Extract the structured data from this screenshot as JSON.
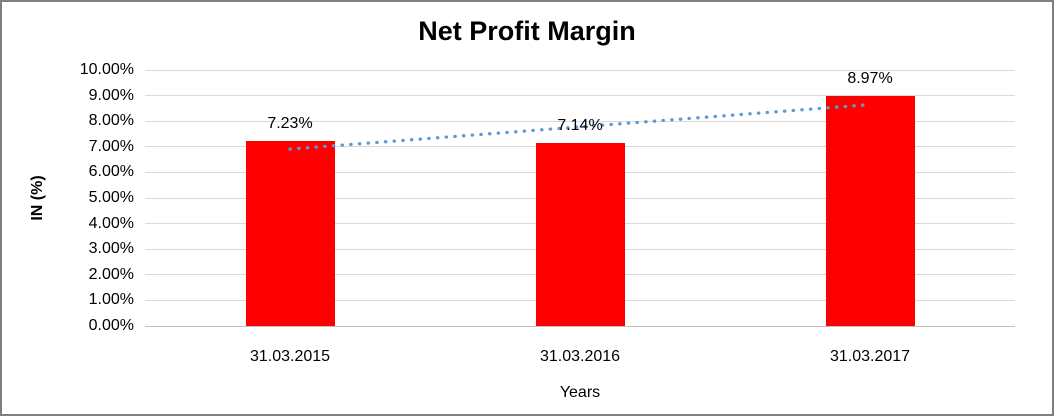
{
  "chart_data": {
    "type": "bar",
    "title": "Net Profit Margin",
    "xlabel": "Years",
    "ylabel": "IN (%)",
    "categories": [
      "31.03.2015",
      "31.03.2016",
      "31.03.2017"
    ],
    "values": [
      7.23,
      7.14,
      8.97
    ],
    "value_labels": [
      "7.23%",
      "7.14%",
      "8.97%"
    ],
    "ylim": [
      0,
      10
    ],
    "ytick_step": 1,
    "ytick_labels": [
      "0.00%",
      "1.00%",
      "2.00%",
      "3.00%",
      "4.00%",
      "5.00%",
      "6.00%",
      "7.00%",
      "8.00%",
      "9.00%",
      "10.00%"
    ],
    "grid": true,
    "legend": "none",
    "bar_color": "#ff0000",
    "gridline_color": "#d9d9d9",
    "text_color": "#000000",
    "trendline": {
      "style": "dotted",
      "color": "#5b9bd5",
      "start_value": 6.91,
      "end_value": 8.65
    }
  }
}
